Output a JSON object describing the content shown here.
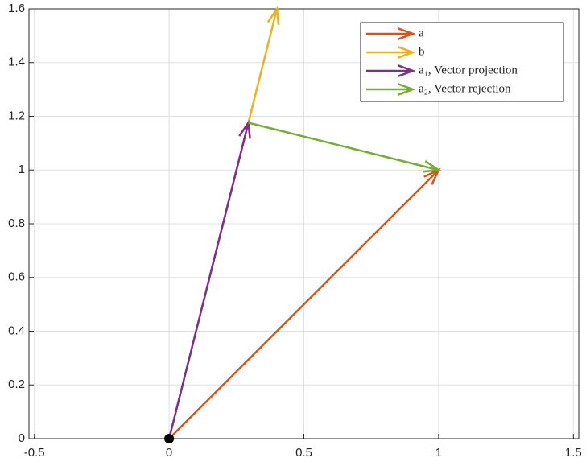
{
  "chart_data": {
    "type": "quiver",
    "series": [
      {
        "name": "a",
        "color": "#d95319",
        "x": 0,
        "y": 0,
        "u": 1,
        "v": 1
      },
      {
        "name": "b",
        "color": "#edb120",
        "x": 0,
        "y": 0,
        "u": 0.4,
        "v": 1.6
      },
      {
        "name": "a₁, Vector projection",
        "color": "#7e2f8e",
        "x": 0,
        "y": 0,
        "u": 0.294,
        "v": 1.176
      },
      {
        "name": "a₂, Vector rejection",
        "color": "#77ac30",
        "x": 0.294,
        "y": 1.176,
        "u": 0.706,
        "v": -0.176
      }
    ],
    "points": [
      {
        "x": 0,
        "y": 0,
        "color": "#000000"
      }
    ],
    "xlim": [
      -0.52,
      1.52
    ],
    "ylim": [
      0,
      1.6
    ],
    "xticks": [
      -0.5,
      0,
      0.5,
      1,
      1.5
    ],
    "yticks": [
      0,
      0.2,
      0.4,
      0.6,
      0.8,
      1,
      1.2,
      1.4,
      1.6
    ],
    "grid": true,
    "legend": "northeast"
  }
}
